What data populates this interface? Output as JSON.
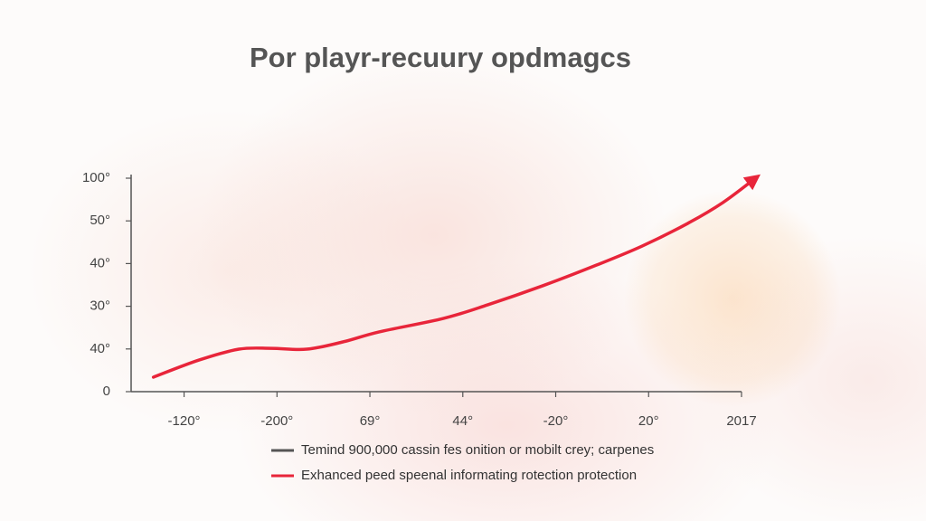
{
  "chart_data": {
    "type": "line",
    "title": "Por playr-recuury opdmagcs",
    "xlim": [
      -0.57,
      6.0
    ],
    "xticks": [
      {
        "value": 0,
        "label": "-120°"
      },
      {
        "value": 1,
        "label": "-200°"
      },
      {
        "value": 2,
        "label": "69°"
      },
      {
        "value": 3,
        "label": "44°"
      },
      {
        "value": 4,
        "label": "-20°"
      },
      {
        "value": 5,
        "label": "20°"
      },
      {
        "value": 6,
        "label": "2017"
      }
    ],
    "ylim": [
      0,
      100
    ],
    "yticks": [
      0,
      {
        "value": 20,
        "label": "40°"
      },
      {
        "value": 40,
        "label": "30°"
      },
      {
        "value": 60,
        "label": "40°"
      },
      {
        "value": 80,
        "label": "50°"
      },
      {
        "value": 100,
        "label": "100°"
      }
    ],
    "series": [
      {
        "color": "#e8253a",
        "x": [
          -0.33,
          0.16,
          0.59,
          0.94,
          1.32,
          1.71,
          2.1,
          2.79,
          3.27,
          3.86,
          4.44,
          4.93,
          5.42,
          5.8,
          6.15
        ],
        "values": [
          6.8,
          14.8,
          19.9,
          20.3,
          19.9,
          23.3,
          28,
          34.3,
          40.7,
          49.6,
          59.3,
          68.2,
          78.8,
          88.6,
          100
        ]
      }
    ],
    "legend": [
      {
        "label": "Temind 900,000 cassin fes onition or mobilt crey; carpenes",
        "color": "#555555"
      },
      {
        "label": "Exhanced peed speenal informating rotection protection",
        "color": "#e8253a"
      }
    ]
  }
}
